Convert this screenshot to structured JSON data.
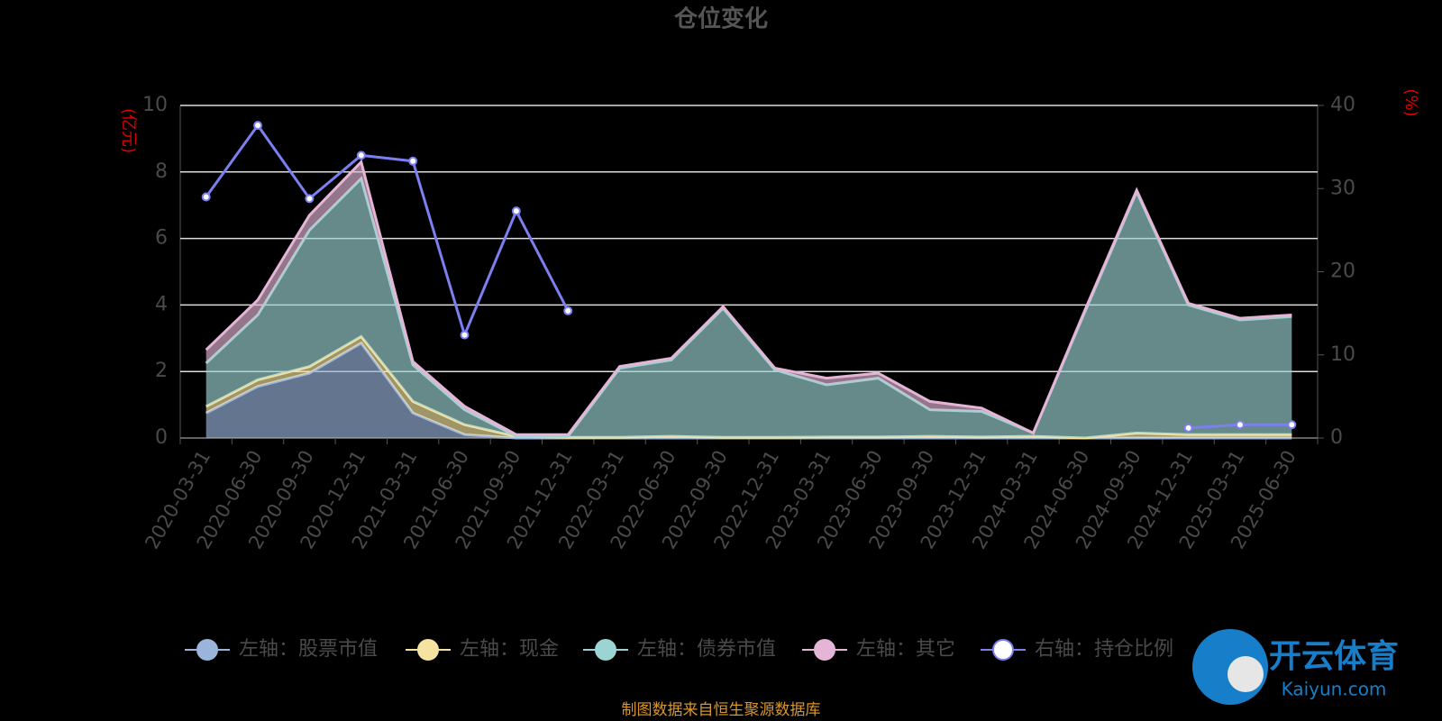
{
  "chart_data": {
    "type": "stacked-area-line",
    "title": "仓位变化",
    "y_unit": "(亿元)",
    "y2_unit": "(%)",
    "categories": [
      "2020-03-31",
      "2020-06-30",
      "2020-09-30",
      "2020-12-31",
      "2021-03-31",
      "2021-06-30",
      "2021-09-30",
      "2021-12-31",
      "2022-03-31",
      "2022-06-30",
      "2022-09-30",
      "2022-12-31",
      "2023-03-31",
      "2023-06-30",
      "2023-09-30",
      "2023-12-31",
      "2024-03-31",
      "2024-06-30",
      "2024-09-30",
      "2024-12-31",
      "2025-03-31",
      "2025-06-30"
    ],
    "series": [
      {
        "name": "左轴：股票市值",
        "color": "#9ab4dc",
        "values": [
          0.75,
          1.55,
          1.95,
          2.85,
          0.75,
          0.1,
          0,
          0,
          0,
          0,
          0,
          0,
          0,
          0,
          0,
          0,
          0,
          0,
          0,
          0,
          0,
          0
        ]
      },
      {
        "name": "左轴：现金",
        "color": "#f6e3a1",
        "values": [
          0.2,
          0.2,
          0.2,
          0.2,
          0.35,
          0.3,
          0.05,
          0.02,
          0.02,
          0.05,
          0.02,
          0.02,
          0.03,
          0.03,
          0.05,
          0.03,
          0.05,
          0,
          0.15,
          0.1,
          0.1,
          0.1
        ]
      },
      {
        "name": "左轴：债券市值",
        "color": "#9bd4d2",
        "values": [
          1.3,
          1.95,
          4.1,
          4.75,
          1.1,
          0.45,
          0,
          0.03,
          2.08,
          2.3,
          3.88,
          2.03,
          1.57,
          1.77,
          0.8,
          0.77,
          0.1,
          3.8,
          7.25,
          3.9,
          3.45,
          3.55
        ]
      },
      {
        "name": "左轴：其它",
        "color": "#e4b5d6",
        "values": [
          0.4,
          0.45,
          0.45,
          0.5,
          0.1,
          0.1,
          0.05,
          0.05,
          0.05,
          0.05,
          0.05,
          0.05,
          0.2,
          0.15,
          0.25,
          0.1,
          0,
          0.05,
          0.05,
          0.05,
          0.05,
          0.05
        ]
      },
      {
        "name": "右轴：持仓比例",
        "color": "#7b7ff0",
        "axis": "y2",
        "values": [
          29,
          37.6,
          28.8,
          34,
          33.3,
          12.4,
          27.3,
          15.3,
          null,
          null,
          null,
          null,
          null,
          null,
          null,
          null,
          null,
          null,
          null,
          1.2,
          1.6,
          1.6
        ]
      }
    ],
    "ylim": [
      0,
      10
    ],
    "yticks": [
      0,
      2,
      4,
      6,
      8,
      10
    ],
    "y2lim": [
      0,
      40
    ],
    "y2ticks": [
      0,
      10,
      20,
      30,
      40
    ],
    "grid": true,
    "legend": "bottom",
    "source": "制图数据来自恒生聚源数据库",
    "watermark": {
      "text": "开云体育",
      "subtext": "Kaiyun.com"
    }
  }
}
